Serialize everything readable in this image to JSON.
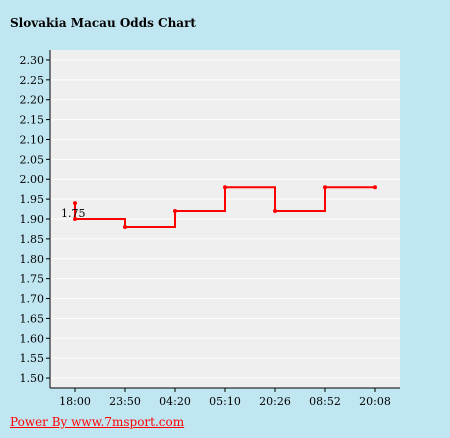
{
  "chart_data": {
    "type": "line",
    "step": true,
    "title": "Slovakia Macau Odds Chart",
    "xlabel": "",
    "ylabel": "",
    "categories": [
      "18:00",
      "23:50",
      "04:20",
      "05:10",
      "20:26",
      "08:52",
      "20:08"
    ],
    "values": [
      1.9,
      1.88,
      1.92,
      1.98,
      1.92,
      1.98,
      1.98
    ],
    "start_value": 1.94,
    "annotations": [
      {
        "x": "18:00",
        "text": "1.75"
      }
    ],
    "ylim": [
      1.475,
      2.325
    ],
    "yticks": [
      "2.30",
      "2.25",
      "2.20",
      "2.15",
      "2.10",
      "2.05",
      "2.00",
      "1.95",
      "1.90",
      "1.85",
      "1.80",
      "1.75",
      "1.70",
      "1.65",
      "1.60",
      "1.55",
      "1.50"
    ],
    "grid": true,
    "colors": {
      "line": "#ff0000",
      "plot_bg": "#efefef",
      "grid": "#ffffff",
      "page_bg": "#c0e6f2"
    }
  },
  "footer": {
    "link_text": "Power By www.7msport.com"
  }
}
